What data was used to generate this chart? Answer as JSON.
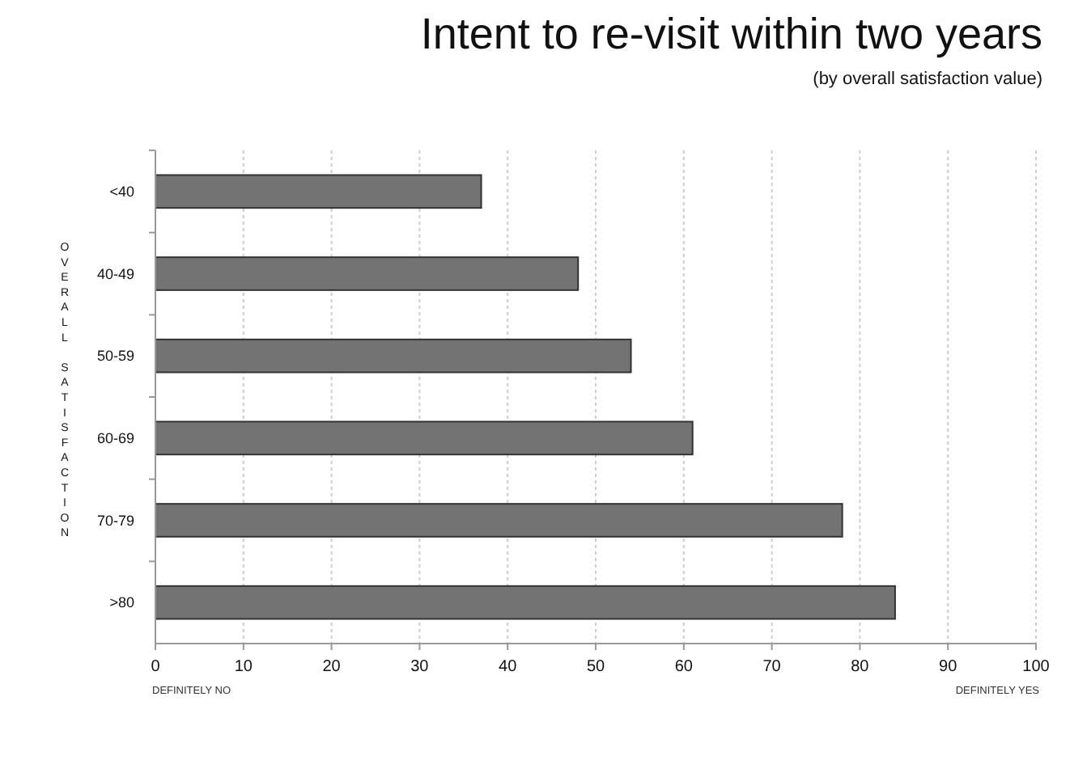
{
  "chart_data": {
    "type": "bar",
    "orientation": "horizontal",
    "title": "Intent to re-visit within two years",
    "subtitle": "(by overall satisfaction value)",
    "ylabel": "OVERALL SATISFACTION",
    "categories": [
      "<40",
      "40-49",
      "50-59",
      "60-69",
      "70-79",
      ">80"
    ],
    "values": [
      37,
      48,
      54,
      61,
      78,
      84
    ],
    "color": "#737373",
    "xlim": [
      0,
      100
    ],
    "xticks": [
      0,
      10,
      20,
      30,
      40,
      50,
      60,
      70,
      80,
      90,
      100
    ],
    "grid": "x",
    "annotations": [
      "DEFINITELY NO",
      "DEFINITELY YES"
    ]
  }
}
